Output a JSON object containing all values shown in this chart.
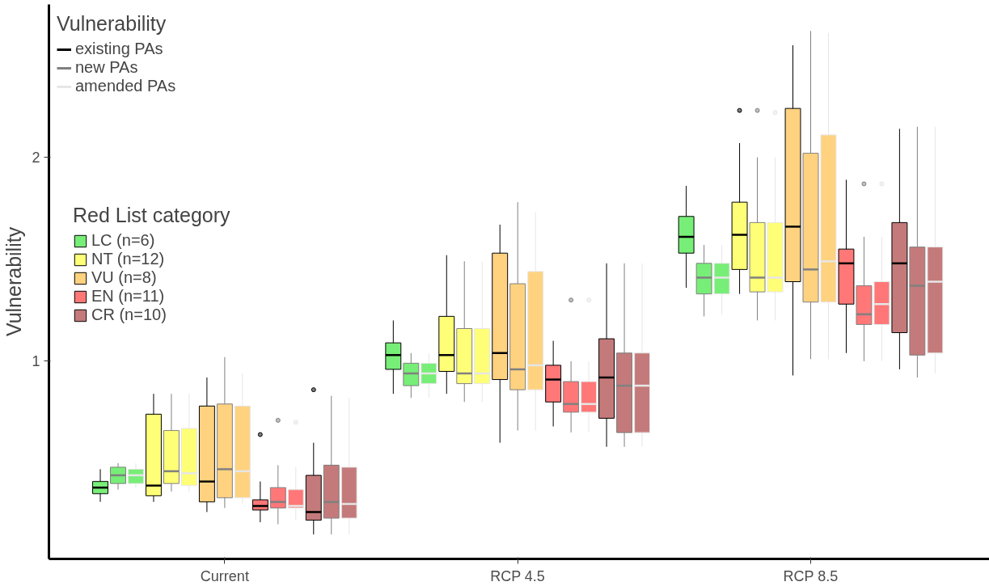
{
  "chart_data": {
    "type": "box",
    "categories": [
      "Current",
      "RCP 4.5",
      "RCP 8.5"
    ],
    "ylabel": "Vulnerability",
    "ylim": [
      0.03,
      2.75
    ],
    "yticks": [
      1,
      2
    ],
    "legend": "top left",
    "legend_title": "Red List category",
    "annotations": [
      "Vulnerability",
      "existing PAs",
      "new PAs",
      "amended PAs"
    ],
    "series": [
      {
        "name": "LC (n=6)",
        "color": "#77ee77",
        "boxes": [
          {
            "low": 0.31,
            "q1": 0.35,
            "median": 0.38,
            "q3": 0.41,
            "high": 0.47
          },
          {
            "low": 0.84,
            "q1": 0.96,
            "median": 1.03,
            "q3": 1.09,
            "high": 1.2
          },
          {
            "low": 1.36,
            "q1": 1.53,
            "median": 1.61,
            "q3": 1.71,
            "high": 1.86
          }
        ]
      },
      {
        "color": "#77ee77",
        "boxes": [
          {
            "low": 0.37,
            "q1": 0.4,
            "median": 0.44,
            "q3": 0.48,
            "high": 0.5
          },
          {
            "low": 0.82,
            "q1": 0.88,
            "median": 0.94,
            "q3": 0.99,
            "high": 1.04
          },
          {
            "low": 1.22,
            "q1": 1.33,
            "median": 1.41,
            "q3": 1.48,
            "high": 1.57
          }
        ]
      },
      {
        "color": "#77ee77",
        "boxes": [
          {
            "low": 0.38,
            "q1": 0.4,
            "median": 0.44,
            "q3": 0.47,
            "high": 0.5
          },
          {
            "low": 0.82,
            "q1": 0.89,
            "median": 0.94,
            "q3": 0.99,
            "high": 1.04
          },
          {
            "low": 1.23,
            "q1": 1.33,
            "median": 1.41,
            "q3": 1.48,
            "high": 1.57
          }
        ]
      },
      {
        "name": "NT (n=12)",
        "color": "#ffff77",
        "boxes": [
          {
            "low": 0.31,
            "q1": 0.34,
            "median": 0.39,
            "q3": 0.74,
            "high": 0.84
          },
          {
            "low": 0.84,
            "q1": 0.95,
            "median": 1.03,
            "q3": 1.22,
            "high": 1.52
          },
          {
            "low": 1.33,
            "q1": 1.45,
            "median": 1.62,
            "q3": 1.78,
            "high": 2.07,
            "outliers": [
              2.23
            ]
          }
        ]
      },
      {
        "color": "#ffff77",
        "boxes": [
          {
            "low": 0.36,
            "q1": 0.4,
            "median": 0.46,
            "q3": 0.66,
            "high": 0.84
          },
          {
            "low": 0.8,
            "q1": 0.89,
            "median": 0.94,
            "q3": 1.16,
            "high": 1.49
          },
          {
            "low": 1.2,
            "q1": 1.34,
            "median": 1.41,
            "q3": 1.68,
            "high": 2.0,
            "outliers": [
              2.23
            ]
          }
        ]
      },
      {
        "color": "#ffff77",
        "boxes": [
          {
            "low": 0.36,
            "q1": 0.39,
            "median": 0.45,
            "q3": 0.67,
            "high": 0.84
          },
          {
            "low": 0.8,
            "q1": 0.89,
            "median": 0.94,
            "q3": 1.16,
            "high": 1.49
          },
          {
            "low": 1.2,
            "q1": 1.34,
            "median": 1.41,
            "q3": 1.68,
            "high": 2.0,
            "outliers": [
              2.22
            ]
          }
        ]
      },
      {
        "name": "VU (n=8)",
        "color": "#ffd280",
        "boxes": [
          {
            "low": 0.26,
            "q1": 0.31,
            "median": 0.41,
            "q3": 0.78,
            "high": 0.92
          },
          {
            "low": 0.6,
            "q1": 0.91,
            "median": 1.04,
            "q3": 1.53,
            "high": 1.67
          },
          {
            "low": 0.93,
            "q1": 1.39,
            "median": 1.66,
            "q3": 2.24,
            "high": 2.55
          }
        ]
      },
      {
        "color": "#ffd280",
        "boxes": [
          {
            "low": 0.28,
            "q1": 0.33,
            "median": 0.47,
            "q3": 0.79,
            "high": 1.02
          },
          {
            "low": 0.66,
            "q1": 0.86,
            "median": 0.96,
            "q3": 1.38,
            "high": 1.78
          },
          {
            "low": 1.01,
            "q1": 1.29,
            "median": 1.45,
            "q3": 2.02,
            "high": 2.62
          }
        ]
      },
      {
        "color": "#ffd280",
        "boxes": [
          {
            "low": 0.3,
            "q1": 0.33,
            "median": 0.46,
            "q3": 0.78,
            "high": 0.94
          },
          {
            "low": 0.66,
            "q1": 0.86,
            "median": 0.98,
            "q3": 1.44,
            "high": 1.73
          },
          {
            "low": 1.01,
            "q1": 1.29,
            "median": 1.49,
            "q3": 2.11,
            "high": 2.61
          }
        ]
      },
      {
        "name": "EN (n=11)",
        "color": "#ff7777",
        "boxes": [
          {
            "low": 0.21,
            "q1": 0.27,
            "median": 0.29,
            "q3": 0.32,
            "high": 0.41,
            "outliers": [
              0.64
            ]
          },
          {
            "low": 0.68,
            "q1": 0.8,
            "median": 0.91,
            "q3": 0.98,
            "high": 1.1
          },
          {
            "low": 1.04,
            "q1": 1.28,
            "median": 1.48,
            "q3": 1.55,
            "high": 1.89
          }
        ]
      },
      {
        "color": "#ff7777",
        "boxes": [
          {
            "low": 0.2,
            "q1": 0.28,
            "median": 0.31,
            "q3": 0.38,
            "high": 0.49,
            "outliers": [
              0.71
            ]
          },
          {
            "low": 0.65,
            "q1": 0.75,
            "median": 0.79,
            "q3": 0.9,
            "high": 1.0,
            "outliers": [
              1.3
            ]
          },
          {
            "low": 1.0,
            "q1": 1.18,
            "median": 1.23,
            "q3": 1.37,
            "high": 1.61,
            "outliers": [
              1.87
            ]
          }
        ]
      },
      {
        "color": "#ff7777",
        "boxes": [
          {
            "low": 0.22,
            "q1": 0.28,
            "median": 0.29,
            "q3": 0.37,
            "high": 0.48,
            "outliers": [
              0.7
            ]
          },
          {
            "low": 0.65,
            "q1": 0.75,
            "median": 0.79,
            "q3": 0.9,
            "high": 1.0,
            "outliers": [
              1.3
            ]
          },
          {
            "low": 1.0,
            "q1": 1.18,
            "median": 1.28,
            "q3": 1.39,
            "high": 1.61,
            "outliers": [
              1.87
            ]
          }
        ]
      },
      {
        "name": "CR (n=10)",
        "color": "#c47a7a",
        "boxes": [
          {
            "low": 0.15,
            "q1": 0.22,
            "median": 0.26,
            "q3": 0.44,
            "high": 0.6,
            "outliers": [
              0.86
            ]
          },
          {
            "low": 0.58,
            "q1": 0.72,
            "median": 0.92,
            "q3": 1.11,
            "high": 1.48
          },
          {
            "low": 0.96,
            "q1": 1.14,
            "median": 1.48,
            "q3": 1.68,
            "high": 2.14
          }
        ]
      },
      {
        "color": "#c47a7a",
        "boxes": [
          {
            "low": 0.15,
            "q1": 0.23,
            "median": 0.31,
            "q3": 0.49,
            "high": 0.83
          },
          {
            "low": 0.58,
            "q1": 0.65,
            "median": 0.88,
            "q3": 1.04,
            "high": 1.48
          },
          {
            "low": 0.92,
            "q1": 1.03,
            "median": 1.37,
            "q3": 1.56,
            "high": 2.15
          }
        ]
      },
      {
        "color": "#c47a7a",
        "boxes": [
          {
            "low": 0.15,
            "q1": 0.23,
            "median": 0.3,
            "q3": 0.48,
            "high": 0.82
          },
          {
            "low": 0.58,
            "q1": 0.65,
            "median": 0.88,
            "q3": 1.04,
            "high": 1.48
          },
          {
            "low": 0.94,
            "q1": 1.04,
            "median": 1.39,
            "q3": 1.56,
            "high": 2.15
          }
        ]
      }
    ]
  }
}
